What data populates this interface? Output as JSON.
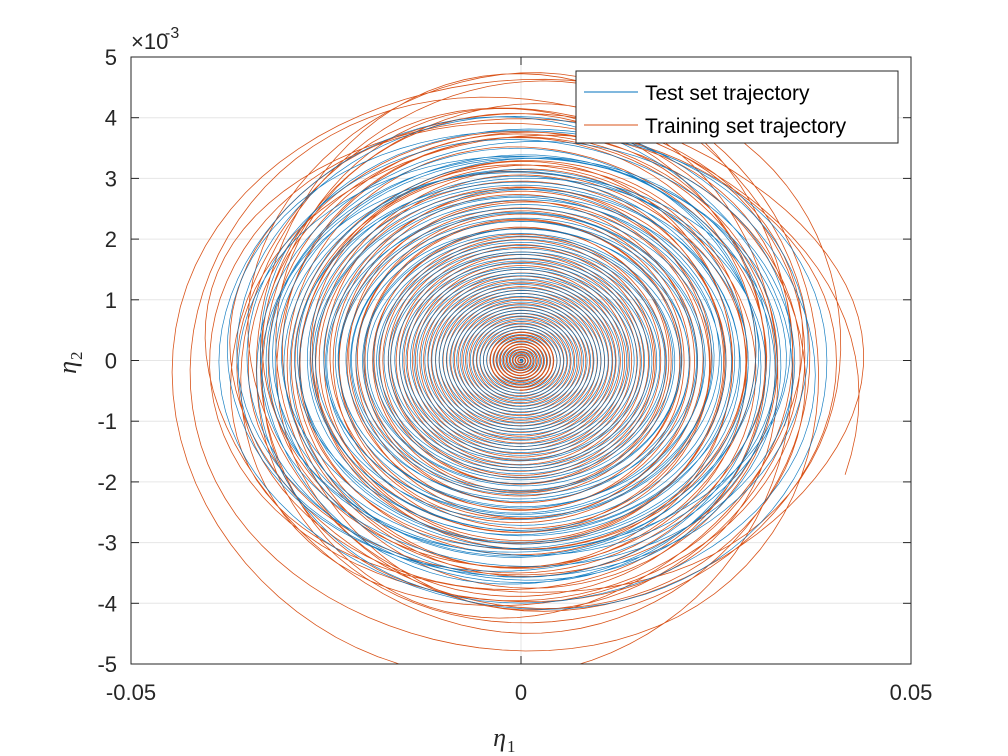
{
  "chart_data": {
    "type": "line",
    "title": "",
    "xlabel": "η",
    "xlabel_sub": "1",
    "ylabel": "η",
    "ylabel_sub": "2",
    "xlim": [
      -0.05,
      0.05
    ],
    "ylim": [
      -5,
      5
    ],
    "y_exponent_label": "×10",
    "y_exponent": "-3",
    "x_ticks": [
      -0.05,
      0,
      0.05
    ],
    "x_tick_labels": [
      "-0.05",
      "0",
      "0.05"
    ],
    "y_ticks": [
      -5,
      -4,
      -3,
      -2,
      -1,
      0,
      1,
      2,
      3,
      4,
      5
    ],
    "y_tick_labels": [
      "-5",
      "-4",
      "-3",
      "-2",
      "-1",
      "0",
      "1",
      "2",
      "3",
      "4",
      "5"
    ],
    "grid": true,
    "legend_position": "top-right",
    "series": [
      {
        "name": "Test set trajectory",
        "color": "#0072BD",
        "description_values": {
          "spiral_start": [
            0.0375,
            -1.25
          ],
          "outer_x_amplitude": 0.0375,
          "outer_y_amplitude": 3.9,
          "inner_x_amplitude": 0.0,
          "inner_y_amplitude": 0.05,
          "turns": 80
        }
      },
      {
        "name": "Training set trajectory",
        "color": "#D95319",
        "description_values": {
          "spiral_start": [
            0.041,
            -1.45
          ],
          "outer_x_amplitude": 0.041,
          "outer_y_amplitude": 4.7,
          "inner_x_amplitude": 0.0,
          "inner_y_amplitude": 0.05,
          "turns": 80
        }
      }
    ]
  }
}
